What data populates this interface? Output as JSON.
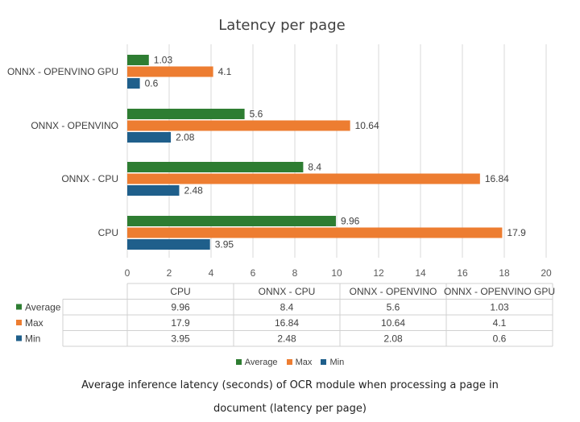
{
  "chart_data": {
    "type": "bar",
    "orientation": "horizontal",
    "title": "Latency per page",
    "categories": [
      "ONNX - OPENVINO GPU",
      "ONNX - OPENVINO",
      "ONNX - CPU",
      "CPU"
    ],
    "series": [
      {
        "name": "Average",
        "color": "#2e7d32",
        "values": [
          1.03,
          5.6,
          8.4,
          9.96
        ]
      },
      {
        "name": "Max",
        "color": "#ed7d31",
        "values": [
          4.1,
          10.64,
          16.84,
          17.9
        ]
      },
      {
        "name": "Min",
        "color": "#1f5f8b",
        "values": [
          0.6,
          2.08,
          2.48,
          3.95
        ]
      }
    ],
    "xlim": [
      0,
      20
    ],
    "xticks": [
      0,
      2,
      4,
      6,
      8,
      10,
      12,
      14,
      16,
      18,
      20
    ],
    "grid": true,
    "legend": "bottom"
  },
  "data_table": {
    "columns": [
      "CPU",
      "ONNX - CPU",
      "ONNX - OPENVINO",
      "ONNX - OPENVINO GPU"
    ],
    "rows": [
      {
        "label": "Average",
        "values": [
          "9.96",
          "8.4",
          "5.6",
          "1.03"
        ]
      },
      {
        "label": "Max",
        "values": [
          "17.9",
          "16.84",
          "10.64",
          "4.1"
        ]
      },
      {
        "label": "Min",
        "values": [
          "3.95",
          "2.48",
          "2.08",
          "0.6"
        ]
      }
    ]
  },
  "caption": {
    "line1": "Average inference latency (seconds) of OCR module when processing a page in",
    "line2": "document (latency per page)"
  }
}
